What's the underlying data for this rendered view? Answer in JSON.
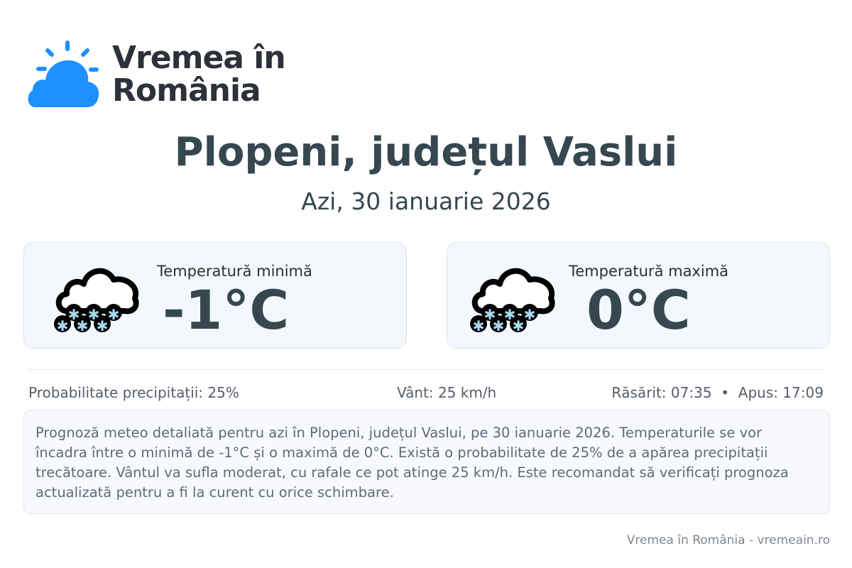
{
  "logo": {
    "text_line1": "Vremea în",
    "text_line2": "România"
  },
  "header": {
    "title": "Plopeni, județul Vaslui",
    "subtitle": "Azi, 30 ianuarie 2026"
  },
  "cards": [
    {
      "label": "Temperatură minimă",
      "value": "-1°C",
      "icon": "snow-cloud-icon"
    },
    {
      "label": "Temperatură maximă",
      "value": "0°C",
      "icon": "snow-cloud-icon"
    }
  ],
  "stats": {
    "precipitation": "Probabilitate precipitații: 25%",
    "wind": "Vânt: 25 km/h",
    "sun": "Răsărit: 07:35  •  Apus: 17:09"
  },
  "description": "Prognoză meteo detaliată pentru azi în Plopeni, județul Vaslui, pe 30 ianuarie 2026. Temperaturile se vor încadra între o minimă de -1°C și o maximă de 0°C. Există o probabilitate de 25% de a apărea precipitații trecătoare. Vântul va sufla moderat, cu rafale ce pot atinge 25 km/h. Este recomandat să verificați prognoza actualizată pentru a fi la curent cu orice schimbare.",
  "footer": "Vremea în România - vremeain.ro",
  "colors": {
    "logo_blue": "#1e90ff",
    "text_dark": "#36474f",
    "card_bg": "#f3f8fe",
    "snowflake": "#a8d8f0"
  }
}
